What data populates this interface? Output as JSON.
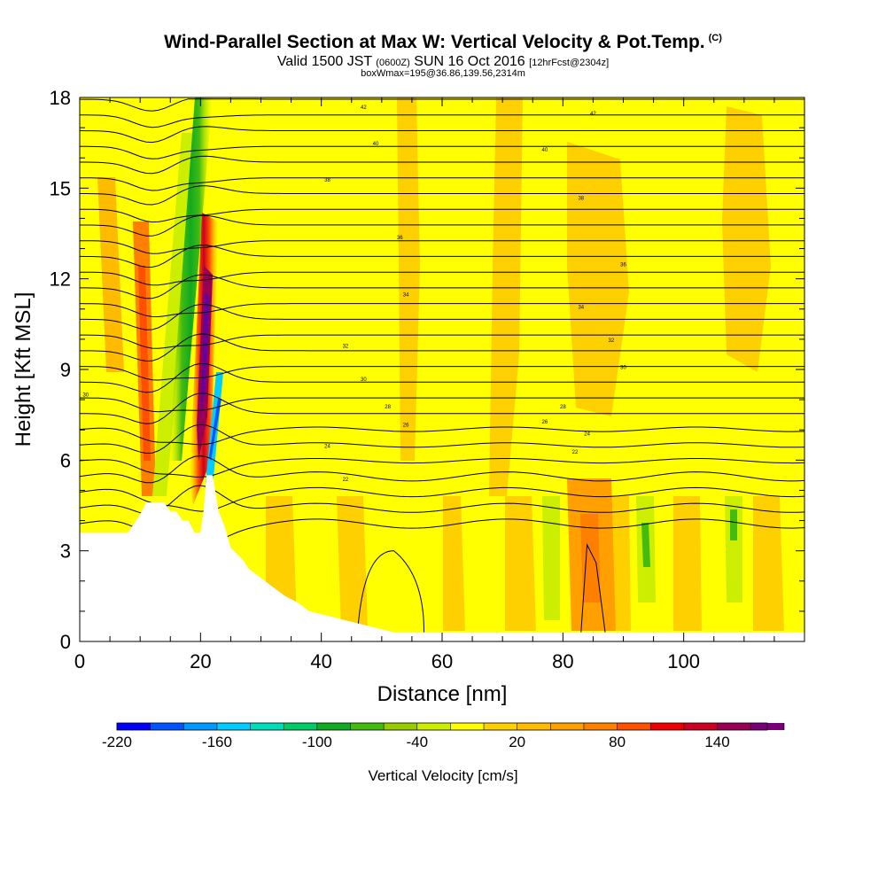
{
  "header": {
    "title": "Wind-Parallel Section at Max W: Vertical Velocity & Pot.Temp.",
    "copyright": "(C)",
    "valid_a": "Valid 1500 JST",
    "valid_utc": "(0600Z)",
    "valid_b": "SUN 16 Oct 2016",
    "forecast": "[12hrFcst@2304z]",
    "box": "boxWmax=195@36.86,139.56,2314m"
  },
  "colors": {
    "background_fill": "#ffff00",
    "terrain": "#ffffff",
    "contour": "#000000",
    "scale": [
      "#0000ff",
      "#0055ff",
      "#0099ff",
      "#00ccff",
      "#00ddbb",
      "#00cc66",
      "#11aa22",
      "#44bb11",
      "#99cc00",
      "#ccee00",
      "#ffff00",
      "#ffd000",
      "#ffbb00",
      "#ffa000",
      "#ff8000",
      "#ff5000",
      "#ee0000",
      "#cc0022",
      "#990055",
      "#770077",
      "#660099"
    ]
  },
  "chart_data": {
    "type": "contour",
    "x": {
      "label": "Distance [nm]",
      "range": [
        0,
        120
      ],
      "ticks": [
        0,
        20,
        40,
        60,
        80,
        100
      ]
    },
    "y": {
      "label": "Height [Kft MSL]",
      "range": [
        0,
        18
      ],
      "ticks": [
        0,
        3,
        6,
        9,
        12,
        15,
        18
      ]
    },
    "colorbar": {
      "label": "Vertical Velocity [cm/s]",
      "range": [
        -220,
        170
      ],
      "step": 20,
      "ticks": [
        "-220",
        "-160",
        "-100",
        "-40",
        "20",
        "80",
        "140"
      ]
    },
    "max_w_cm_s": 195,
    "terrain_profile": {
      "x": [
        0,
        8,
        9,
        10,
        11,
        12,
        14,
        15,
        16,
        17,
        18,
        19,
        20,
        20.5,
        21,
        22,
        23,
        24,
        25,
        26,
        27,
        28,
        30,
        32,
        34,
        36,
        38,
        40,
        42,
        44,
        46,
        48,
        50,
        52,
        120
      ],
      "height": [
        3.6,
        3.6,
        3.9,
        4.2,
        4.6,
        4.6,
        4.6,
        4.3,
        4.3,
        4.0,
        4.0,
        3.6,
        3.6,
        4.3,
        5.5,
        5.5,
        4.3,
        3.8,
        3.1,
        2.9,
        2.7,
        2.4,
        2.1,
        1.8,
        1.5,
        1.3,
        1.0,
        0.9,
        0.8,
        0.7,
        0.6,
        0.5,
        0.4,
        0.3,
        0.3
      ]
    },
    "theta_labels": [
      {
        "value": "42",
        "x": 47,
        "y": 17.7
      },
      {
        "value": "42",
        "x": 85,
        "y": 17.5
      },
      {
        "value": "40",
        "x": 49,
        "y": 16.5
      },
      {
        "value": "40",
        "x": 77,
        "y": 16.3
      },
      {
        "value": "38",
        "x": 41,
        "y": 15.3
      },
      {
        "value": "38",
        "x": 83,
        "y": 14.7
      },
      {
        "value": "36",
        "x": 53,
        "y": 13.4
      },
      {
        "value": "36",
        "x": 90,
        "y": 12.5
      },
      {
        "value": "34",
        "x": 54,
        "y": 11.5
      },
      {
        "value": "34",
        "x": 83,
        "y": 11.1
      },
      {
        "value": "32",
        "x": 88,
        "y": 10.0
      },
      {
        "value": "32",
        "x": 44,
        "y": 9.8
      },
      {
        "value": "30",
        "x": 47,
        "y": 8.7
      },
      {
        "value": "30",
        "x": 90,
        "y": 9.1
      },
      {
        "value": "30",
        "x": 1,
        "y": 8.2
      },
      {
        "value": "28",
        "x": 51,
        "y": 7.8
      },
      {
        "value": "28",
        "x": 80,
        "y": 7.8
      },
      {
        "value": "26",
        "x": 54,
        "y": 7.2
      },
      {
        "value": "26",
        "x": 77,
        "y": 7.3
      },
      {
        "value": "24",
        "x": 41,
        "y": 6.5
      },
      {
        "value": "24",
        "x": 84,
        "y": 6.9
      },
      {
        "value": "22",
        "x": 44,
        "y": 5.4
      },
      {
        "value": "22",
        "x": 82,
        "y": 6.3
      }
    ]
  }
}
